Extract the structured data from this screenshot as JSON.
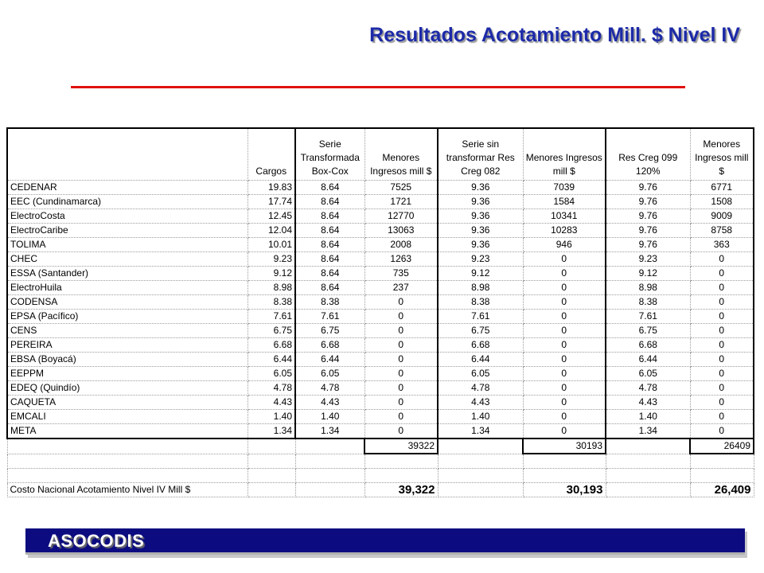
{
  "title": "Resultados Acotamiento Mill. $ Nivel IV",
  "headers": {
    "h1": "Cargos",
    "h2": "Serie Transformada Box-Cox",
    "h3": "Menores Ingresos mill $",
    "h4": "Serie sin transformar Res Creg 082",
    "h5": "Menores Ingresos mill $",
    "h6": "Res Creg 099 120%",
    "h7": "Menores Ingresos mill $"
  },
  "rows": [
    {
      "name": "CEDENAR",
      "c1": "19.83",
      "c2": "8.64",
      "c3": "7525",
      "c4": "9.36",
      "c5": "7039",
      "c6": "9.76",
      "c7": "6771"
    },
    {
      "name": "EEC (Cundinamarca)",
      "c1": "17.74",
      "c2": "8.64",
      "c3": "1721",
      "c4": "9.36",
      "c5": "1584",
      "c6": "9.76",
      "c7": "1508"
    },
    {
      "name": "ElectroCosta",
      "c1": "12.45",
      "c2": "8.64",
      "c3": "12770",
      "c4": "9.36",
      "c5": "10341",
      "c6": "9.76",
      "c7": "9009"
    },
    {
      "name": "ElectroCaribe",
      "c1": "12.04",
      "c2": "8.64",
      "c3": "13063",
      "c4": "9.36",
      "c5": "10283",
      "c6": "9.76",
      "c7": "8758"
    },
    {
      "name": "TOLIMA",
      "c1": "10.01",
      "c2": "8.64",
      "c3": "2008",
      "c4": "9.36",
      "c5": "946",
      "c6": "9.76",
      "c7": "363"
    },
    {
      "name": "CHEC",
      "c1": "9.23",
      "c2": "8.64",
      "c3": "1263",
      "c4": "9.23",
      "c5": "0",
      "c6": "9.23",
      "c7": "0"
    },
    {
      "name": "ESSA (Santander)",
      "c1": "9.12",
      "c2": "8.64",
      "c3": "735",
      "c4": "9.12",
      "c5": "0",
      "c6": "9.12",
      "c7": "0"
    },
    {
      "name": "ElectroHuila",
      "c1": "8.98",
      "c2": "8.64",
      "c3": "237",
      "c4": "8.98",
      "c5": "0",
      "c6": "8.98",
      "c7": "0"
    },
    {
      "name": "CODENSA",
      "c1": "8.38",
      "c2": "8.38",
      "c3": "0",
      "c4": "8.38",
      "c5": "0",
      "c6": "8.38",
      "c7": "0"
    },
    {
      "name": "EPSA (Pacífico)",
      "c1": "7.61",
      "c2": "7.61",
      "c3": "0",
      "c4": "7.61",
      "c5": "0",
      "c6": "7.61",
      "c7": "0"
    },
    {
      "name": "CENS",
      "c1": "6.75",
      "c2": "6.75",
      "c3": "0",
      "c4": "6.75",
      "c5": "0",
      "c6": "6.75",
      "c7": "0"
    },
    {
      "name": "PEREIRA",
      "c1": "6.68",
      "c2": "6.68",
      "c3": "0",
      "c4": "6.68",
      "c5": "0",
      "c6": "6.68",
      "c7": "0"
    },
    {
      "name": "EBSA (Boyacá)",
      "c1": "6.44",
      "c2": "6.44",
      "c3": "0",
      "c4": "6.44",
      "c5": "0",
      "c6": "6.44",
      "c7": "0"
    },
    {
      "name": "EEPPM",
      "c1": "6.05",
      "c2": "6.05",
      "c3": "0",
      "c4": "6.05",
      "c5": "0",
      "c6": "6.05",
      "c7": "0"
    },
    {
      "name": "EDEQ (Quindío)",
      "c1": "4.78",
      "c2": "4.78",
      "c3": "0",
      "c4": "4.78",
      "c5": "0",
      "c6": "4.78",
      "c7": "0"
    },
    {
      "name": "CAQUETA",
      "c1": "4.43",
      "c2": "4.43",
      "c3": "0",
      "c4": "4.43",
      "c5": "0",
      "c6": "4.43",
      "c7": "0"
    },
    {
      "name": "EMCALI",
      "c1": "1.40",
      "c2": "1.40",
      "c3": "0",
      "c4": "1.40",
      "c5": "0",
      "c6": "1.40",
      "c7": "0"
    },
    {
      "name": "META",
      "c1": "1.34",
      "c2": "1.34",
      "c3": "0",
      "c4": "1.34",
      "c5": "0",
      "c6": "1.34",
      "c7": "0"
    }
  ],
  "sums": {
    "s1": "39322",
    "s2": "30193",
    "s3": "26409"
  },
  "total": {
    "label": "Costo Nacional Acotamiento Nivel IV Mill $",
    "t1": "39,322",
    "t2": "30,193",
    "t3": "26,409"
  },
  "footer": {
    "label": "ASOCODIS"
  },
  "colors": {
    "title": "#1c2aa8",
    "rule": "#e01010",
    "footer_bar": "#0c0c80"
  }
}
